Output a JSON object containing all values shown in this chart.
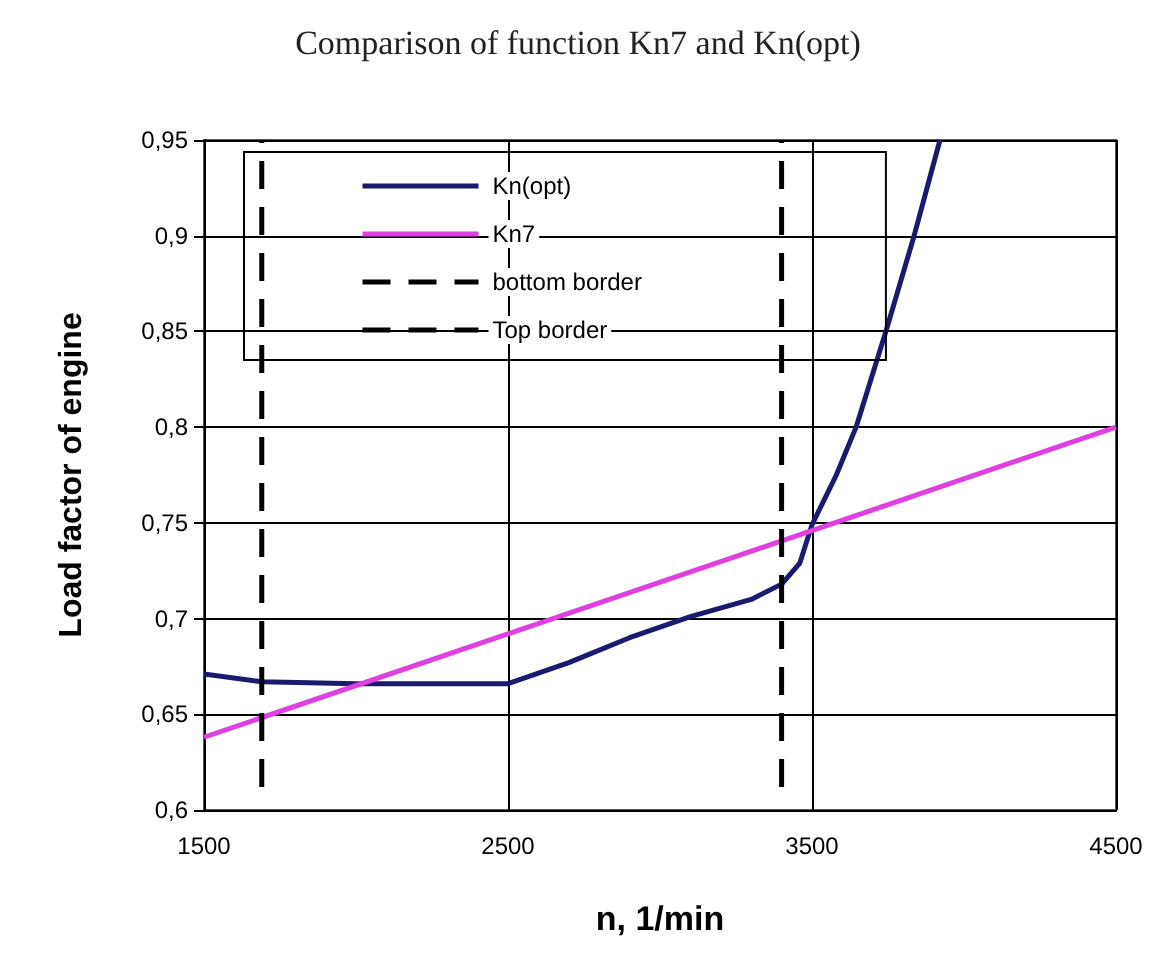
{
  "chart_data": {
    "type": "line",
    "title": "Comparison of function Kn7 and Kn(opt)",
    "xlabel": "n, 1/min",
    "ylabel": "Load factor of engine",
    "xlim": [
      1500,
      4500
    ],
    "xticks": [
      1500,
      2500,
      3500,
      4500
    ],
    "ylim": [
      0.6,
      0.95
    ],
    "yticks": [
      {
        "value": 0.6,
        "label": "0,6"
      },
      {
        "value": 0.65,
        "label": "0,65"
      },
      {
        "value": 0.7,
        "label": "0,7"
      },
      {
        "value": 0.75,
        "label": "0,75"
      },
      {
        "value": 0.8,
        "label": "0,8"
      },
      {
        "value": 0.85,
        "label": "0,85"
      },
      {
        "value": 0.9,
        "label": "0,9"
      },
      {
        "value": 0.95,
        "label": "0,95"
      }
    ],
    "grid": true,
    "legend": "top left",
    "marker": "none",
    "series": [
      {
        "name": "Kn(opt)",
        "color": "#1a1a6e",
        "line_style": "solid",
        "x": [
          1500,
          1690,
          2000,
          2500,
          2700,
          2900,
          3100,
          3300,
          3400,
          3460,
          3500,
          3580,
          3645,
          3743,
          3836,
          3921
        ],
        "values": [
          0.671,
          0.667,
          0.666,
          0.666,
          0.677,
          0.69,
          0.701,
          0.71,
          0.718,
          0.729,
          0.749,
          0.775,
          0.8,
          0.85,
          0.9,
          0.95
        ]
      },
      {
        "name": "Kn7",
        "color": "#e040e0",
        "line_style": "solid",
        "x": [
          1500,
          4500
        ],
        "values": [
          0.638,
          0.8
        ]
      },
      {
        "name": "bottom border",
        "color": "#000000",
        "line_style": "dashed",
        "x": [
          1690,
          1690
        ],
        "values": [
          0.612,
          0.95
        ]
      },
      {
        "name": "Top border",
        "color": "#000000",
        "line_style": "dashed",
        "x": [
          3400,
          3400
        ],
        "values": [
          0.612,
          0.95
        ]
      }
    ]
  }
}
